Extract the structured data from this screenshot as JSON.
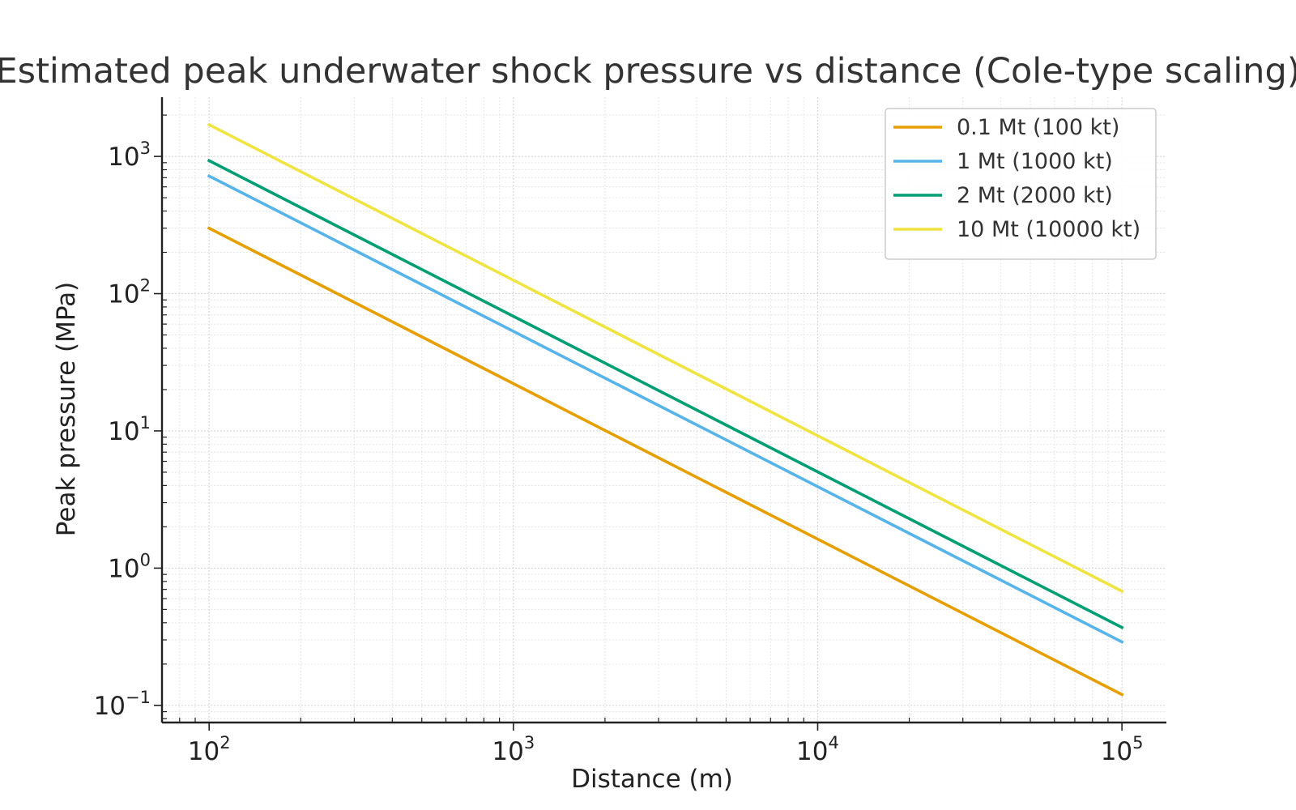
{
  "chart_data": {
    "type": "line",
    "title": "Estimated peak underwater shock pressure vs distance (Cole-type scaling)",
    "xlabel": "Distance (m)",
    "ylabel": "Peak pressure (MPa)",
    "xscale": "log",
    "yscale": "log",
    "xlim": [
      70,
      140000
    ],
    "ylim": [
      0.075,
      2700
    ],
    "xticks": [
      {
        "value": 100,
        "base": "10",
        "exp": "2"
      },
      {
        "value": 1000,
        "base": "10",
        "exp": "3"
      },
      {
        "value": 10000,
        "base": "10",
        "exp": "4"
      },
      {
        "value": 100000,
        "base": "10",
        "exp": "5"
      }
    ],
    "yticks": [
      {
        "value": 0.1,
        "base": "10",
        "exp": "−1"
      },
      {
        "value": 1,
        "base": "10",
        "exp": "0"
      },
      {
        "value": 10,
        "base": "10",
        "exp": "1"
      },
      {
        "value": 100,
        "base": "10",
        "exp": "2"
      },
      {
        "value": 1000,
        "base": "10",
        "exp": "3"
      }
    ],
    "grid": true,
    "legend_position": "top-right",
    "x": [
      100,
      100000
    ],
    "series": [
      {
        "name": "0.1 Mt (100 kt)",
        "color": "#E69F00",
        "values": [
          300,
          0.12
        ]
      },
      {
        "name": "1 Mt (1000 kt)",
        "color": "#56B4E9",
        "values": [
          720,
          0.29
        ]
      },
      {
        "name": "2 Mt (2000 kt)",
        "color": "#009E73",
        "values": [
          930,
          0.37
        ]
      },
      {
        "name": "10 Mt (10000 kt)",
        "color": "#F0E442",
        "values": [
          1700,
          0.68
        ]
      }
    ]
  }
}
